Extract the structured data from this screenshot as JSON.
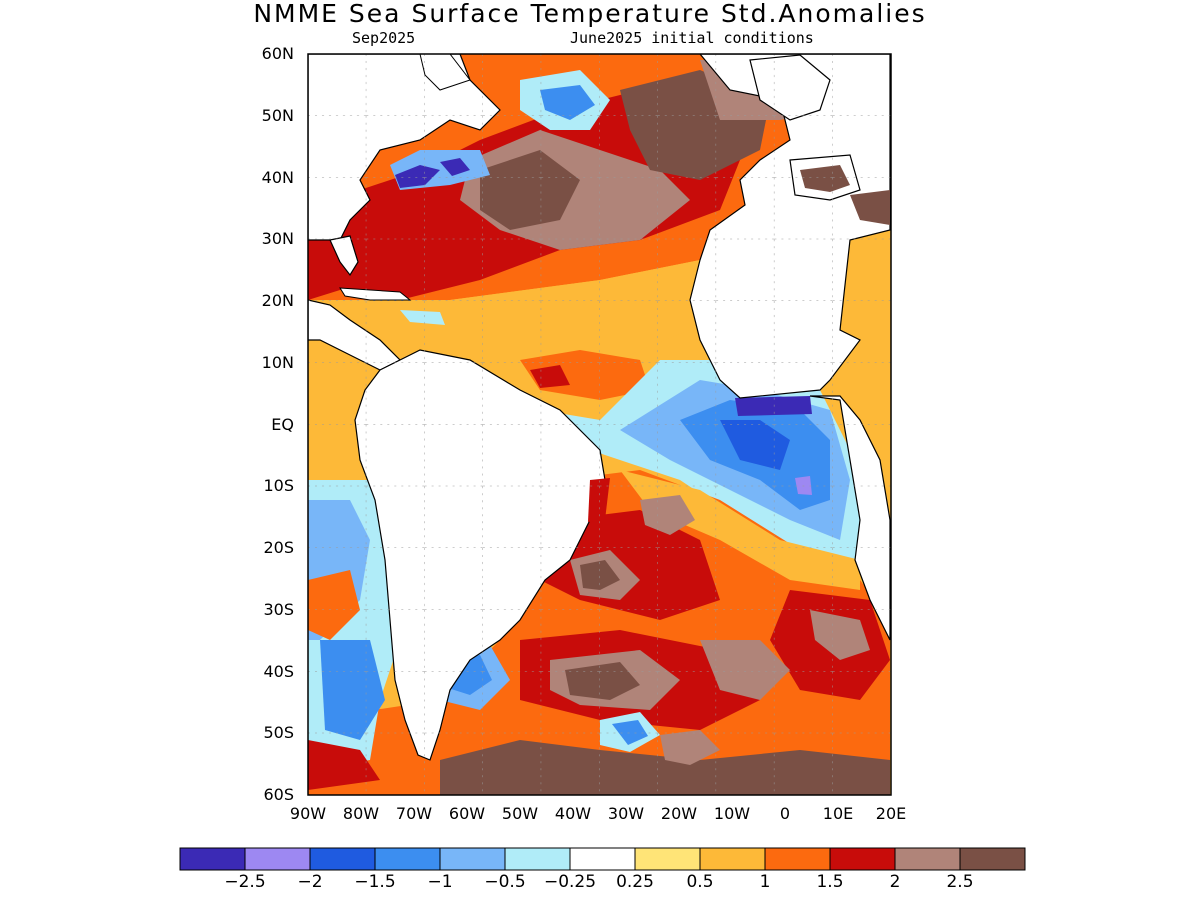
{
  "title": "NMME Sea Surface Temperature Std.Anomalies",
  "valid_month": "Sep2025",
  "initial_conditions": "June2025 initial conditions",
  "lat_labels": [
    "60N",
    "50N",
    "40N",
    "30N",
    "20N",
    "10N",
    "EQ",
    "10S",
    "20S",
    "30S",
    "40S",
    "50S",
    "60S"
  ],
  "lon_labels": [
    "90W",
    "80W",
    "70W",
    "60W",
    "50W",
    "40W",
    "30W",
    "20W",
    "10W",
    "0",
    "10E",
    "20E"
  ],
  "colorbar": {
    "labels": [
      "-2.5",
      "-2",
      "-1.5",
      "-1",
      "-0.5",
      "-0.25",
      "0.25",
      "0.5",
      "1",
      "1.5",
      "2",
      "2.5"
    ],
    "colors": [
      "#3b2ab5",
      "#9d88f2",
      "#1f5be0",
      "#3c8ef0",
      "#78b6f8",
      "#b0ecf8",
      "#ffffff",
      "#ffe477",
      "#fdb938",
      "#fc6a0f",
      "#c80c0a",
      "#b08479",
      "#7a5045"
    ]
  },
  "anomaly_colors": {
    "strong_cool": "#3b2ab5",
    "cool": "#3c8ef0",
    "mild_cool": "#78b6f8",
    "slight_cool": "#b0ecf8",
    "slight_warm": "#ffe477",
    "mild_warm": "#fdb938",
    "warm": "#fc6a0f",
    "very_warm": "#c80c0a",
    "extreme": "#b08479",
    "max": "#7a5045",
    "land": "#ffffff"
  }
}
